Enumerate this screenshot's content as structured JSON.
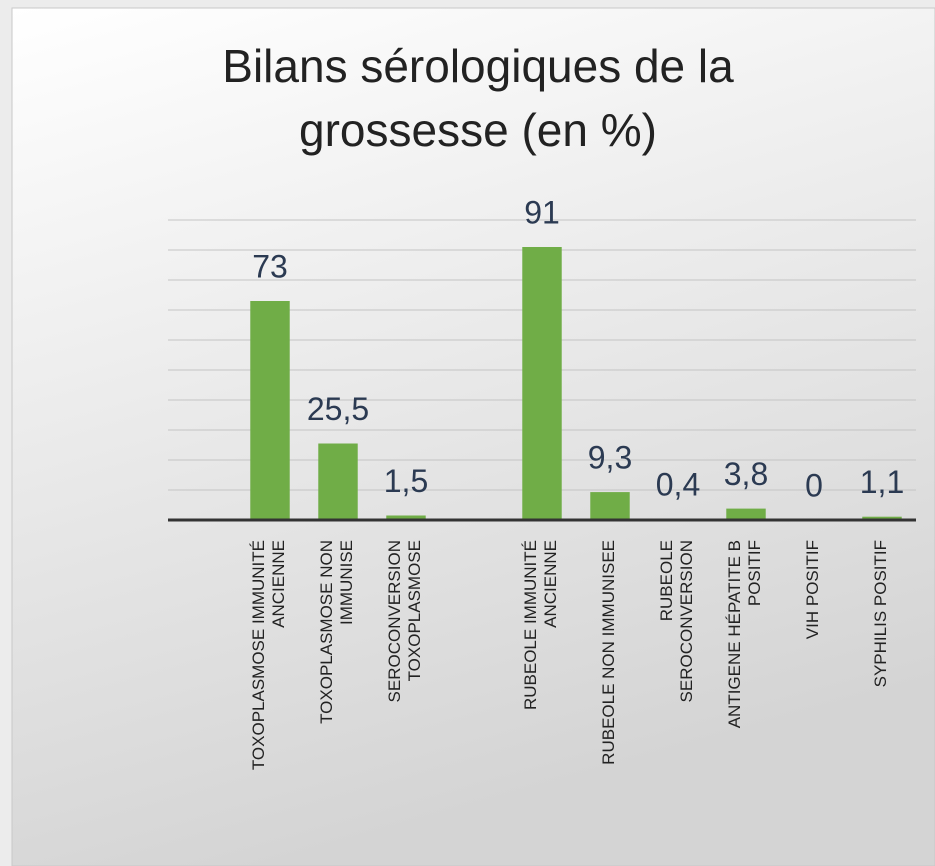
{
  "chart_data": {
    "type": "bar",
    "title": "Bilans sérologiques de la grossesse (en %)",
    "categories": [
      null,
      "TOXOPLASMOSE IMMUNITÉ ANCIENNE",
      "TOXOPLASMOSE NON IMMUNISE",
      "SEROCONVERSION TOXOPLASMOSE",
      null,
      "RUBEOLE IMMUNITÉ ANCIENNE",
      "RUBEOLE NON IMMUNISEE",
      "RUBEOLE SEROCONVERSION",
      "ANTIGENE HÉPATITE B POSITIF",
      "VIH POSITIF",
      "SYPHILIS POSITIF"
    ],
    "values": [
      null,
      73,
      25.5,
      1.5,
      null,
      91,
      9.3,
      0.4,
      3.8,
      0,
      1.1
    ],
    "value_labels": [
      null,
      "73",
      "25,5",
      "1,5",
      null,
      "91",
      "9,3",
      "0,4",
      "3,8",
      "0",
      "1,1"
    ],
    "color": "#70ad47",
    "ylim": [
      0,
      100
    ],
    "yticks": [
      0,
      10,
      20,
      30,
      40,
      50,
      60,
      70,
      80,
      90,
      100
    ],
    "grid": true
  }
}
